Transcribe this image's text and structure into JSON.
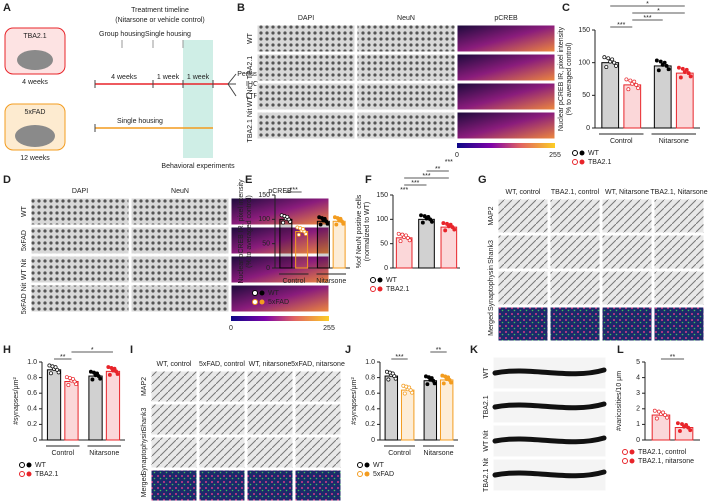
{
  "panel_letters": [
    "A",
    "B",
    "C",
    "D",
    "E",
    "F",
    "G",
    "H",
    "I",
    "J",
    "K",
    "L"
  ],
  "panel_a": {
    "mouse_1": "TBA2.1",
    "age_1": "4 weeks",
    "mouse_2": "5xFAD",
    "age_2": "12 weeks",
    "timeline_title": "Treatment timeline",
    "timeline_subtitle": "(Nitarsone or vehicle control)",
    "group_housing": "Group housing",
    "single_housing_top": "Single housing",
    "period_1": "4 weeks",
    "period_2": "1 week",
    "period_3": "1 week",
    "outcome_1": "Perfusion",
    "outcome_2": "IHC",
    "outcome_3": "LTP",
    "single_housing": "Single housing",
    "behavior": "Behavioral experiments"
  },
  "panel_b": {
    "columns": [
      "DAPI",
      "NeuN",
      "pCREB"
    ],
    "rows": [
      "WT",
      "TBA2.1",
      "WT Nit",
      "TBA2.1 Nit"
    ],
    "colorbar": [
      0,
      255
    ]
  },
  "panel_d": {
    "columns": [
      "DAPI",
      "NeuN",
      "pCREB"
    ],
    "rows": [
      "WT",
      "5xFAD",
      "WT Nit",
      "5xFAD Nit"
    ],
    "colorbar": [
      0,
      255
    ]
  },
  "panel_g": {
    "columns": [
      "WT, control",
      "TBA2.1, control",
      "WT, Nitarsone",
      "TBA2.1, Nitarsone"
    ],
    "rows": [
      "MAP2",
      "Shank3",
      "Synaptophysin",
      "Merged"
    ]
  },
  "panel_i": {
    "columns": [
      "WT, control",
      "5xFAD, control",
      "WT, nitarsone",
      "5xFAD, nitarsone"
    ],
    "rows": [
      "MAP2",
      "Shank3",
      "Synaptophysin",
      "Merged"
    ]
  },
  "panel_k": {
    "rows": [
      "WT",
      "TBA2.1",
      "WT Nit",
      "TBA2.1 Nit"
    ]
  },
  "chart_data": [
    {
      "type": "bar",
      "ylabel": [
        "Nuclear pCREB IR, pixel intensity",
        "(% to averaged control)"
      ],
      "ylim": [
        0,
        150
      ],
      "yticks": [
        0,
        50,
        100,
        150
      ],
      "categories": [
        "Control",
        "Nitarsone"
      ],
      "series": [
        {
          "name": "WT",
          "color": "#000000",
          "values": [
            100,
            95
          ]
        },
        {
          "name": "TBA2.1",
          "color": "#e8242a",
          "values": [
            66,
            84
          ]
        }
      ],
      "significance": [
        "***",
        "***",
        "*",
        "*"
      ]
    },
    {
      "type": "bar",
      "ylabel": [
        "Nuclear pCREB IR, pixel intensity",
        "(% to averaged control)"
      ],
      "ylim": [
        0,
        150
      ],
      "yticks": [
        0,
        50,
        100,
        150
      ],
      "categories": [
        "Control",
        "Nitarsone"
      ],
      "series": [
        {
          "name": "WT",
          "color": "#000000",
          "values": [
            100,
            96
          ]
        },
        {
          "name": "5xFAD",
          "color": "#f39c1f",
          "values": [
            75,
            96
          ]
        }
      ],
      "significance": [
        "***"
      ]
    },
    {
      "type": "bar",
      "ylabel": [
        "%of NeuN positive cells",
        "(normalized to WT)"
      ],
      "ylim": [
        0,
        150
      ],
      "yticks": [
        0,
        50,
        100,
        150
      ],
      "values": [
        62,
        100,
        84
      ],
      "colors": [
        "#e8242a",
        "#000000",
        "#e8242a"
      ],
      "legend": [
        {
          "name": "WT",
          "color": "#000000"
        },
        {
          "name": "TBA2.1",
          "color": "#e8242a"
        }
      ],
      "significance": [
        "***",
        "***",
        "***",
        "**",
        "***"
      ]
    },
    {
      "type": "bar",
      "ylabel": [
        "#synapses/μm²"
      ],
      "ylim": [
        0,
        1
      ],
      "yticks": [
        0,
        0.2,
        0.4,
        0.6,
        0.8,
        {
          "value": 1,
          "label": "1.0"
        }
      ],
      "categories": [
        "Control",
        "Nitarsone"
      ],
      "series": [
        {
          "name": "WT",
          "color": "#000000",
          "values": [
            0.9,
            0.82
          ]
        },
        {
          "name": "TBA2.1",
          "color": "#e8242a",
          "values": [
            0.75,
            0.88
          ]
        }
      ],
      "significance": [
        "**",
        "*"
      ]
    },
    {
      "type": "bar",
      "ylabel": [
        "#synapses/μm²"
      ],
      "ylim": [
        0,
        1
      ],
      "yticks": [
        0,
        0.2,
        0.4,
        0.6,
        0.8,
        {
          "value": 1,
          "label": "1.0"
        }
      ],
      "categories": [
        "Control",
        "Nitarsone"
      ],
      "series": [
        {
          "name": "WT",
          "color": "#000000",
          "values": [
            0.82,
            0.76
          ]
        },
        {
          "name": "5xFAD",
          "color": "#f39c1f",
          "values": [
            0.64,
            0.77
          ]
        }
      ],
      "significance": [
        "***",
        "**"
      ]
    },
    {
      "type": "bar",
      "ylabel": [
        "#varicosities/10 μm"
      ],
      "ylim": [
        0,
        5
      ],
      "yticks": [
        0,
        1,
        2,
        3,
        4,
        5
      ],
      "categories": [
        null
      ],
      "series": [
        {
          "name": "TBA2.1, control",
          "color": "#e8242a",
          "values": [
            1.6
          ]
        },
        {
          "name": "TBA2.1, nitarsone",
          "color": "#e8242a",
          "values": [
            0.8
          ]
        }
      ],
      "significance": [
        "**"
      ]
    }
  ]
}
